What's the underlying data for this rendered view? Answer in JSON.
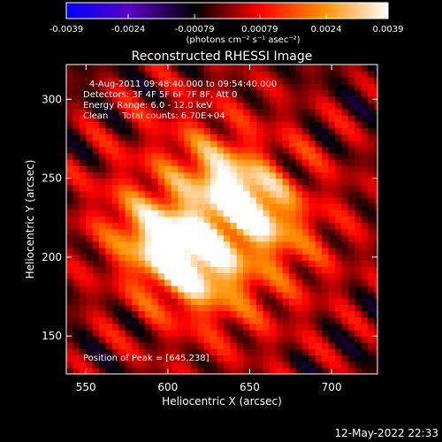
{
  "chart_data": {
    "type": "heatmap",
    "title": "Reconstructed RHESSI Image",
    "xlabel": "Heliocentric X (arcsec)",
    "ylabel": "Heliocentric Y (arcsec)",
    "xlim": [
      538,
      728
    ],
    "ylim": [
      126,
      322
    ],
    "x_ticks": [
      550,
      600,
      650,
      700
    ],
    "y_ticks": [
      150,
      200,
      250,
      300
    ],
    "x_tick_labels": [
      "550",
      "600",
      "650",
      "700"
    ],
    "y_tick_labels": [
      "150",
      "200",
      "250",
      "300"
    ],
    "colorbar": {
      "range": [
        -0.0039,
        0.0039
      ],
      "ticks": [
        -0.0039,
        -0.0024,
        -0.00079,
        0.00079,
        0.0024,
        0.0039
      ],
      "tick_labels": [
        "-0.0039",
        "-0.0024",
        "-0.00079",
        "0.00079",
        "0.0024",
        "0.0039"
      ],
      "units_label": "(photons cm⁻² s⁻¹ asec⁻²)",
      "stops": [
        "#0000ff",
        "#5a00c0",
        "#000000",
        "#ff0000",
        "#ff9000",
        "#ffffff"
      ]
    },
    "peaks": [
      {
        "x": 645,
        "y": 238,
        "value": 0.0039
      },
      {
        "x": 600,
        "y": 200,
        "value": 0.0032
      },
      {
        "x": 620,
        "y": 210,
        "value": 0.0024
      }
    ],
    "annotations": [
      "4-Aug-2011 09:48:40.000 to 09:54:40.000",
      "Detectors: 3F 4F 5F 6F 7F 8F, Att 0",
      "Energy Range: 6.0 - 12.0 keV",
      "Clean     Total counts: 6.70E+04"
    ],
    "peak_label": "Position of Peak = [645,238]"
  },
  "footer": {
    "timestamp": "12-May-2022 22:33"
  }
}
